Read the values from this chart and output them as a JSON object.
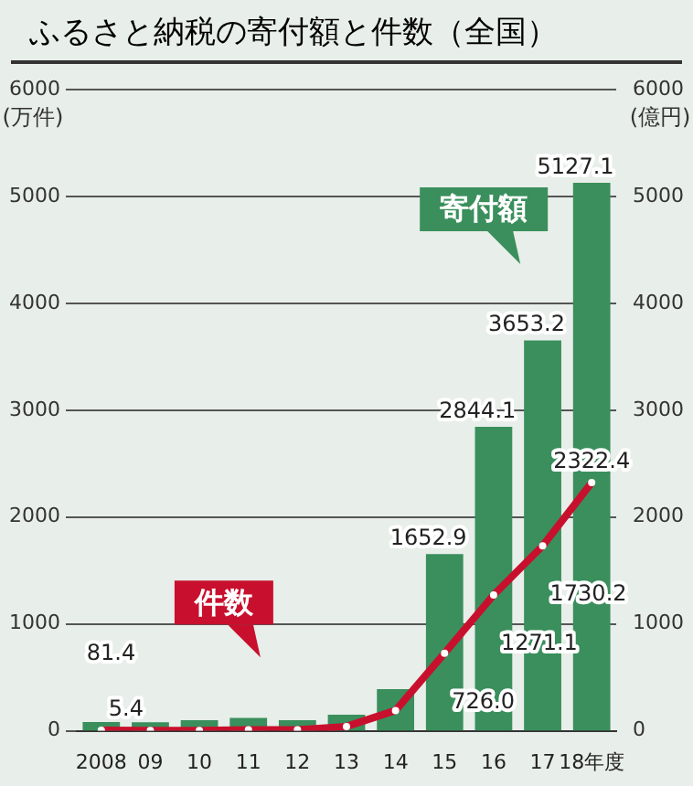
{
  "chart_data": {
    "type": "bar",
    "title": "ふるさと納税の寄付額と件数（全国）",
    "ylabel": "(万件)",
    "y2label": "(億円)",
    "categories": [
      "2008",
      "09",
      "10",
      "11",
      "12",
      "13",
      "14",
      "15",
      "16",
      "17",
      "18年度"
    ],
    "series": [
      {
        "name": "件数",
        "type": "line",
        "axis": "y",
        "color": "#c8102e",
        "marker": "circle",
        "values": [
          5.4,
          3,
          4,
          10,
          10,
          40,
          190,
          726.0,
          1271.1,
          1730.2,
          2322.4
        ],
        "value_labels": [
          "5.4",
          null,
          null,
          null,
          null,
          null,
          null,
          "726.0",
          "1271.1",
          "1730.2",
          "2322.4"
        ]
      },
      {
        "name": "寄付額",
        "axis": "y2",
        "color": "#3a8f5c",
        "values": [
          81.4,
          80,
          100,
          120,
          100,
          150,
          390,
          1652.9,
          2844.1,
          3653.2,
          5127.1
        ],
        "value_labels": [
          "81.4",
          null,
          null,
          null,
          null,
          null,
          null,
          "1652.9",
          "2844.1",
          "3653.2",
          "5127.1"
        ]
      }
    ],
    "ylim": [
      0,
      6000
    ],
    "yticks": [
      0,
      1000,
      2000,
      3000,
      4000,
      5000,
      6000
    ],
    "y2lim": [
      0,
      6000
    ],
    "y2ticks": [
      0,
      1000,
      2000,
      3000,
      4000,
      5000,
      6000
    ],
    "grid": "y",
    "legend": false
  }
}
